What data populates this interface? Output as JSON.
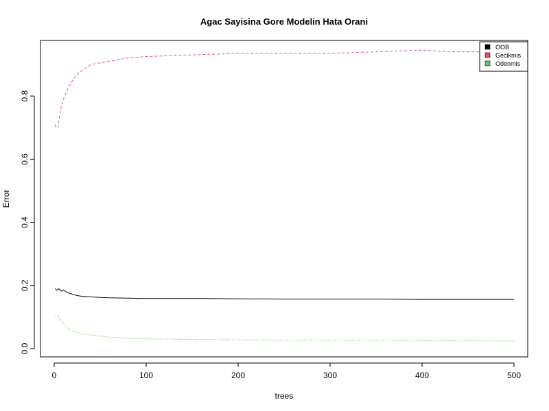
{
  "chart_data": {
    "type": "line",
    "title": "Agac Sayisina Gore Modelin Hata Orani",
    "xlabel": "trees",
    "ylabel": "Error",
    "xlim": [
      1,
      500
    ],
    "ylim": [
      0.0,
      0.95
    ],
    "x_ticks": [
      0,
      100,
      200,
      300,
      400,
      500
    ],
    "y_ticks": [
      0.0,
      0.2,
      0.4,
      0.6,
      0.8
    ],
    "x_tick_labels": [
      "0",
      "100",
      "200",
      "300",
      "400",
      "500"
    ],
    "y_tick_labels": [
      "0.0",
      "0.2",
      "0.4",
      "0.6",
      "0.8"
    ],
    "grid": false,
    "legend_position": "top-right",
    "series": [
      {
        "name": "OOB",
        "color": "#000000",
        "line_style": "solid",
        "x": [
          1,
          3,
          5,
          8,
          10,
          13,
          16,
          20,
          25,
          30,
          40,
          50,
          60,
          80,
          100,
          130,
          160,
          200,
          250,
          300,
          350,
          400,
          450,
          500
        ],
        "values": [
          0.19,
          0.185,
          0.19,
          0.182,
          0.186,
          0.18,
          0.176,
          0.172,
          0.168,
          0.166,
          0.164,
          0.162,
          0.161,
          0.16,
          0.159,
          0.159,
          0.159,
          0.158,
          0.157,
          0.157,
          0.157,
          0.156,
          0.156,
          0.156
        ]
      },
      {
        "name": "Gecikmis",
        "color": "#DF536B",
        "line_style": "dashed",
        "x": [
          1,
          2,
          4,
          6,
          8,
          10,
          13,
          16,
          20,
          25,
          30,
          40,
          50,
          60,
          70,
          80,
          100,
          120,
          150,
          200,
          250,
          300,
          350,
          400,
          430,
          460,
          480,
          500
        ],
        "values": [
          0.71,
          0.7,
          0.7,
          0.74,
          0.77,
          0.79,
          0.81,
          0.83,
          0.85,
          0.87,
          0.88,
          0.9,
          0.905,
          0.91,
          0.915,
          0.92,
          0.925,
          0.927,
          0.93,
          0.935,
          0.935,
          0.935,
          0.94,
          0.945,
          0.94,
          0.94,
          0.935,
          0.94
        ]
      },
      {
        "name": "Odenmis",
        "color": "#61D04F",
        "line_style": "dotted",
        "x": [
          1,
          3,
          5,
          7,
          10,
          13,
          16,
          20,
          25,
          30,
          40,
          50,
          60,
          80,
          100,
          130,
          160,
          200,
          250,
          300,
          350,
          400,
          450,
          500
        ],
        "values": [
          0.1,
          0.105,
          0.1,
          0.09,
          0.08,
          0.07,
          0.062,
          0.055,
          0.05,
          0.047,
          0.043,
          0.04,
          0.036,
          0.033,
          0.031,
          0.03,
          0.029,
          0.028,
          0.027,
          0.026,
          0.026,
          0.025,
          0.025,
          0.024
        ]
      }
    ]
  }
}
